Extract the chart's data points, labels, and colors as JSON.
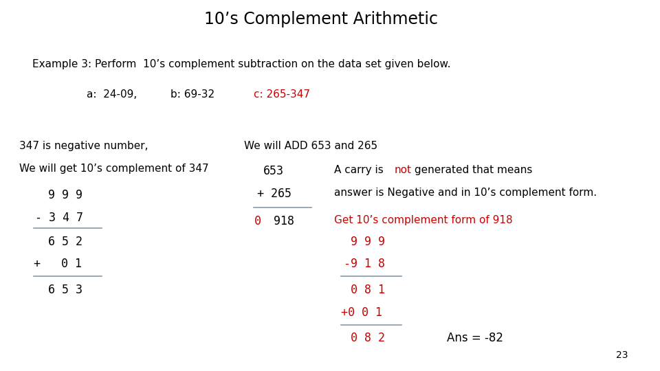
{
  "title": "10’s Complement Arithmetic",
  "bg_color": "#ffffff",
  "black": "#000000",
  "red": "#cc0000",
  "gray_line": "#8899aa",
  "page_number": "23",
  "example_line1": "Example 3: Perform  10’s complement subtraction on the data set given below.",
  "example_line2_b1": "a:  24-09,",
  "example_line2_b2": "b: 69-32",
  "example_line2_red": "c: 265-347",
  "left_text1": "347 is negative number,",
  "left_text2": "We will get 10’s complement of 347",
  "mid_header": "We will ADD 653 and 265",
  "right_carry1": "A carry is ",
  "right_carry1_red": "not",
  "right_carry1_b": " generated that means",
  "right_carry2": "answer is Negative and in 10’s complement form.",
  "right_red_label": "Get 10’s complement form of 918",
  "ans_text": "Ans = -82"
}
